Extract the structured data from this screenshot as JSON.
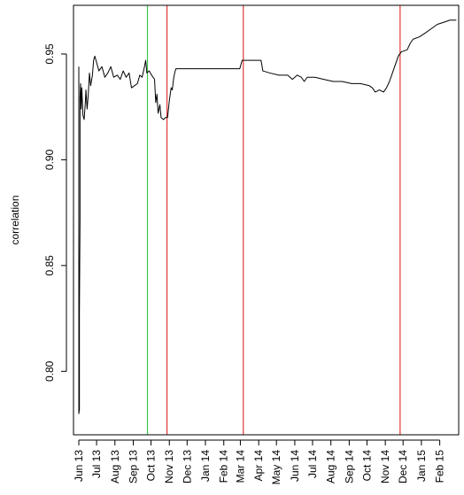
{
  "chart_data": {
    "type": "line",
    "title": "",
    "xlabel": "",
    "ylabel": "correlation",
    "ylim": [
      0.77,
      0.973
    ],
    "xlim": [
      "2013-05-23",
      "2015-03-05"
    ],
    "y_ticks": [
      {
        "value": 0.8,
        "label": "0.80"
      },
      {
        "value": 0.85,
        "label": "0.85"
      },
      {
        "value": 0.9,
        "label": "0.90"
      },
      {
        "value": 0.95,
        "label": "0.95"
      }
    ],
    "x_ticks": [
      {
        "value": "2013-06-01",
        "label": "Jun 13"
      },
      {
        "value": "2013-07-01",
        "label": "Jul 13"
      },
      {
        "value": "2013-08-01",
        "label": "Aug 13"
      },
      {
        "value": "2013-09-01",
        "label": "Sep 13"
      },
      {
        "value": "2013-10-01",
        "label": "Oct 13"
      },
      {
        "value": "2013-11-01",
        "label": "Nov 13"
      },
      {
        "value": "2013-12-01",
        "label": "Dec 13"
      },
      {
        "value": "2014-01-01",
        "label": "Jan 14"
      },
      {
        "value": "2014-02-01",
        "label": "Feb 14"
      },
      {
        "value": "2014-03-01",
        "label": "Mar 14"
      },
      {
        "value": "2014-04-01",
        "label": "Apr 14"
      },
      {
        "value": "2014-05-01",
        "label": "May 14"
      },
      {
        "value": "2014-06-01",
        "label": "Jun 14"
      },
      {
        "value": "2014-07-01",
        "label": "Jul 14"
      },
      {
        "value": "2014-08-01",
        "label": "Aug 14"
      },
      {
        "value": "2014-09-01",
        "label": "Sep 14"
      },
      {
        "value": "2014-10-01",
        "label": "Oct 14"
      },
      {
        "value": "2014-11-01",
        "label": "Nov 14"
      },
      {
        "value": "2014-12-01",
        "label": "Dec 14"
      },
      {
        "value": "2015-01-01",
        "label": "Jan 15"
      },
      {
        "value": "2015-02-01",
        "label": "Feb 15"
      }
    ],
    "vertical_lines": [
      {
        "date": "2013-09-25",
        "color": "#3cc44a"
      },
      {
        "date": "2013-10-28",
        "color": "#e03a3a"
      },
      {
        "date": "2014-03-06",
        "color": "#e03a3a"
      },
      {
        "date": "2014-11-26",
        "color": "#e03a3a"
      }
    ],
    "series": [
      {
        "color": "#000000",
        "points": [
          [
            "2013-06-01",
            0.944
          ],
          [
            "2013-06-01",
            0.78
          ],
          [
            "2013-06-02",
            0.782
          ],
          [
            "2013-06-02",
            0.827
          ],
          [
            "2013-06-03",
            0.872
          ],
          [
            "2013-06-03",
            0.929
          ],
          [
            "2013-06-04",
            0.936
          ],
          [
            "2013-06-05",
            0.924
          ],
          [
            "2013-06-06",
            0.934
          ],
          [
            "2013-06-08",
            0.921
          ],
          [
            "2013-06-10",
            0.919
          ],
          [
            "2013-06-12",
            0.927
          ],
          [
            "2013-06-13",
            0.933
          ],
          [
            "2013-06-15",
            0.924
          ],
          [
            "2013-06-17",
            0.931
          ],
          [
            "2013-06-19",
            0.941
          ],
          [
            "2013-06-21",
            0.935
          ],
          [
            "2013-06-24",
            0.94
          ],
          [
            "2013-06-26",
            0.947
          ],
          [
            "2013-06-28",
            0.949
          ],
          [
            "2013-07-01",
            0.946
          ],
          [
            "2013-07-05",
            0.942
          ],
          [
            "2013-07-10",
            0.944
          ],
          [
            "2013-07-15",
            0.939
          ],
          [
            "2013-07-20",
            0.941
          ],
          [
            "2013-07-25",
            0.944
          ],
          [
            "2013-07-30",
            0.939
          ],
          [
            "2013-08-05",
            0.94
          ],
          [
            "2013-08-10",
            0.938
          ],
          [
            "2013-08-15",
            0.942
          ],
          [
            "2013-08-20",
            0.939
          ],
          [
            "2013-08-25",
            0.941
          ],
          [
            "2013-08-29",
            0.934
          ],
          [
            "2013-09-03",
            0.935
          ],
          [
            "2013-09-08",
            0.936
          ],
          [
            "2013-09-12",
            0.94
          ],
          [
            "2013-09-16",
            0.939
          ],
          [
            "2013-09-20",
            0.944
          ],
          [
            "2013-09-22",
            0.947
          ],
          [
            "2013-09-24",
            0.941
          ],
          [
            "2013-09-28",
            0.942
          ],
          [
            "2013-10-02",
            0.94
          ],
          [
            "2013-10-07",
            0.938
          ],
          [
            "2013-10-09",
            0.927
          ],
          [
            "2013-10-11",
            0.931
          ],
          [
            "2013-10-13",
            0.922
          ],
          [
            "2013-10-16",
            0.926
          ],
          [
            "2013-10-18",
            0.92
          ],
          [
            "2013-10-22",
            0.919
          ],
          [
            "2013-10-26",
            0.92
          ],
          [
            "2013-10-29",
            0.92
          ],
          [
            "2013-11-01",
            0.928
          ],
          [
            "2013-11-04",
            0.934
          ],
          [
            "2013-11-06",
            0.933
          ],
          [
            "2013-11-08",
            0.938
          ],
          [
            "2013-11-10",
            0.941
          ],
          [
            "2013-11-12",
            0.943
          ],
          [
            "2013-11-20",
            0.943
          ],
          [
            "2013-12-15",
            0.943
          ],
          [
            "2014-01-15",
            0.943
          ],
          [
            "2014-02-15",
            0.943
          ],
          [
            "2014-02-28",
            0.943
          ],
          [
            "2014-03-02",
            0.945
          ],
          [
            "2014-03-04",
            0.947
          ],
          [
            "2014-03-20",
            0.947
          ],
          [
            "2014-04-05",
            0.947
          ],
          [
            "2014-04-08",
            0.942
          ],
          [
            "2014-04-20",
            0.941
          ],
          [
            "2014-05-05",
            0.94
          ],
          [
            "2014-05-20",
            0.94
          ],
          [
            "2014-05-28",
            0.938
          ],
          [
            "2014-06-05",
            0.94
          ],
          [
            "2014-06-12",
            0.939
          ],
          [
            "2014-06-17",
            0.937
          ],
          [
            "2014-06-22",
            0.939
          ],
          [
            "2014-07-05",
            0.939
          ],
          [
            "2014-07-20",
            0.938
          ],
          [
            "2014-08-05",
            0.937
          ],
          [
            "2014-08-20",
            0.937
          ],
          [
            "2014-09-05",
            0.936
          ],
          [
            "2014-09-20",
            0.936
          ],
          [
            "2014-10-05",
            0.935
          ],
          [
            "2014-10-10",
            0.934
          ],
          [
            "2014-10-15",
            0.932
          ],
          [
            "2014-10-22",
            0.933
          ],
          [
            "2014-10-29",
            0.932
          ],
          [
            "2014-11-03",
            0.934
          ],
          [
            "2014-11-08",
            0.937
          ],
          [
            "2014-11-13",
            0.941
          ],
          [
            "2014-11-18",
            0.945
          ],
          [
            "2014-11-23",
            0.949
          ],
          [
            "2014-11-28",
            0.951
          ],
          [
            "2014-12-08",
            0.952
          ],
          [
            "2014-12-13",
            0.955
          ],
          [
            "2014-12-18",
            0.957
          ],
          [
            "2014-12-28",
            0.958
          ],
          [
            "2015-01-08",
            0.96
          ],
          [
            "2015-01-18",
            0.962
          ],
          [
            "2015-01-28",
            0.964
          ],
          [
            "2015-02-08",
            0.965
          ],
          [
            "2015-02-18",
            0.966
          ],
          [
            "2015-03-01",
            0.966
          ]
        ]
      }
    ]
  }
}
